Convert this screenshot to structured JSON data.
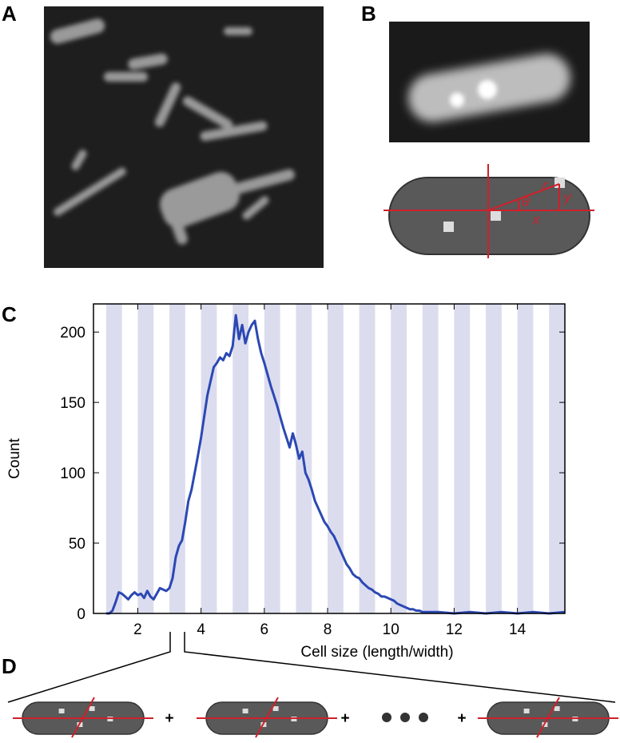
{
  "panels": {
    "a": "A",
    "b": "B",
    "c": "C",
    "d": "D"
  },
  "diagram": {
    "r": "r",
    "theta": "θ",
    "y": "y",
    "x": "x"
  },
  "panel_d": {
    "separator": "+"
  },
  "chart_data": {
    "type": "line",
    "y_label": "Count",
    "x_label": "Cell size (length/width)",
    "color": "#2b48b3",
    "band_color": "#dcdcef",
    "xlim": [
      0.6,
      15.5
    ],
    "ylim": [
      0,
      220
    ],
    "xticks": [
      2,
      4,
      6,
      8,
      10,
      12,
      14
    ],
    "yticks": [
      0,
      50,
      100,
      150,
      200
    ],
    "shaded_bands": [
      [
        1,
        1.5
      ],
      [
        2,
        2.5
      ],
      [
        3,
        3.5
      ],
      [
        4,
        4.5
      ],
      [
        5,
        5.5
      ],
      [
        6,
        6.5
      ],
      [
        7,
        7.5
      ],
      [
        8,
        8.5
      ],
      [
        9,
        9.5
      ],
      [
        10,
        10.5
      ],
      [
        11,
        11.5
      ],
      [
        12,
        12.5
      ],
      [
        13,
        13.5
      ],
      [
        14,
        14.5
      ],
      [
        15,
        15.5
      ]
    ],
    "x": [
      1,
      1.1,
      1.2,
      1.3,
      1.4,
      1.5,
      1.6,
      1.7,
      1.8,
      1.9,
      2,
      2.1,
      2.2,
      2.3,
      2.4,
      2.5,
      2.6,
      2.7,
      2.8,
      2.9,
      3,
      3.1,
      3.2,
      3.3,
      3.4,
      3.5,
      3.6,
      3.7,
      3.8,
      3.9,
      4,
      4.1,
      4.2,
      4.3,
      4.4,
      4.5,
      4.6,
      4.7,
      4.8,
      4.9,
      5,
      5.1,
      5.2,
      5.3,
      5.4,
      5.5,
      5.6,
      5.7,
      5.8,
      5.9,
      6,
      6.1,
      6.2,
      6.3,
      6.4,
      6.5,
      6.6,
      6.7,
      6.8,
      6.9,
      7,
      7.1,
      7.2,
      7.3,
      7.4,
      7.5,
      7.6,
      7.7,
      7.8,
      7.9,
      8,
      8.1,
      8.2,
      8.3,
      8.4,
      8.5,
      8.6,
      8.7,
      8.8,
      8.9,
      9,
      9.1,
      9.2,
      9.3,
      9.4,
      9.5,
      9.6,
      9.7,
      9.8,
      9.9,
      10,
      10.1,
      10.2,
      10.3,
      10.4,
      10.5,
      10.6,
      10.7,
      10.8,
      10.9,
      11,
      11.5,
      12,
      12.5,
      13,
      13.5,
      14,
      14.5,
      15,
      15.5
    ],
    "values": [
      0,
      0,
      2,
      8,
      15,
      14,
      12,
      10,
      13,
      15,
      13,
      14,
      11,
      16,
      12,
      10,
      14,
      18,
      17,
      16,
      18,
      25,
      40,
      48,
      52,
      65,
      80,
      88,
      100,
      112,
      125,
      140,
      155,
      165,
      175,
      178,
      182,
      180,
      185,
      183,
      190,
      212,
      195,
      205,
      192,
      200,
      205,
      208,
      195,
      185,
      178,
      170,
      162,
      155,
      148,
      140,
      132,
      125,
      118,
      128,
      120,
      110,
      115,
      100,
      95,
      88,
      80,
      75,
      70,
      65,
      62,
      58,
      55,
      50,
      45,
      40,
      35,
      32,
      28,
      26,
      25,
      22,
      20,
      18,
      17,
      15,
      14,
      12,
      12,
      11,
      10,
      9,
      7,
      6,
      5,
      4,
      3,
      3,
      2,
      2,
      1,
      1,
      0,
      1,
      0,
      1,
      0,
      1,
      0,
      1
    ]
  }
}
